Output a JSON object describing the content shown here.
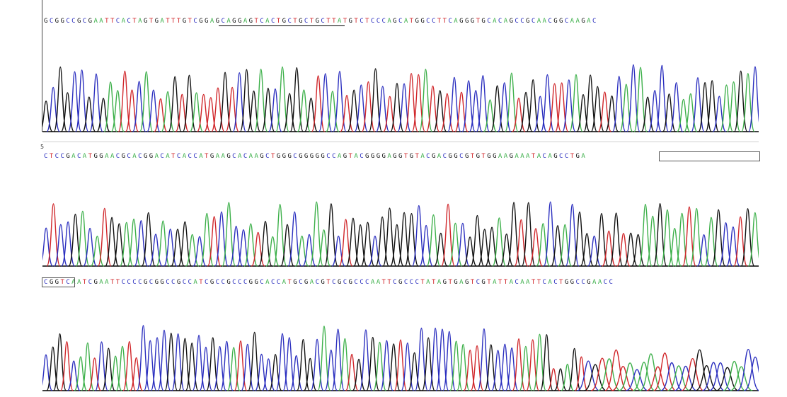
{
  "chart_data": [
    {
      "type": "line",
      "sequence": "GCGGCCGCGAATTCACTAGTGATTTGTCGGAGCAGGAGTCACTGCTGCTGCTTATGTCTCCCAGCATGGCCTTCAGGGTGCACAGCCGCAACGGCAAGAC",
      "series": [
        {
          "name": "A",
          "color": "#3db04a"
        },
        {
          "name": "C",
          "color": "#2b2fbf"
        },
        {
          "name": "G",
          "color": "#111111"
        },
        {
          "name": "T",
          "color": "#d0262a"
        }
      ]
    },
    {
      "type": "line",
      "sequence": "CTCCGACATGGAACGCACGGACATCACCATGAAGCACAAGCTGGGCGGGGGCCAGTACGGGGAGGTGTACGACGGCGTGTGGAAGAAATACAGCCTGA",
      "series": [
        {
          "name": "A",
          "color": "#3db04a"
        },
        {
          "name": "C",
          "color": "#2b2fbf"
        },
        {
          "name": "G",
          "color": "#111111"
        },
        {
          "name": "T",
          "color": "#d0262a"
        }
      ]
    },
    {
      "type": "line",
      "sequence": "CGGTCAATCGAATTCCCCGCGGCCGCCATCGCCGCCCGGCACCATGCGACGTCGCGCCCAATTCGCCCTATAGTGAGTCGTATTACAATTCACTGGCCGAACC",
      "series": [
        {
          "name": "A",
          "color": "#3db04a"
        },
        {
          "name": "C",
          "color": "#2b2fbf"
        },
        {
          "name": "G",
          "color": "#111111"
        },
        {
          "name": "T",
          "color": "#d0262a"
        }
      ]
    }
  ],
  "colors": {
    "A": "#3db04a",
    "C": "#2b2fbf",
    "G": "#111111",
    "T": "#d0262a"
  },
  "tick_label": "5"
}
